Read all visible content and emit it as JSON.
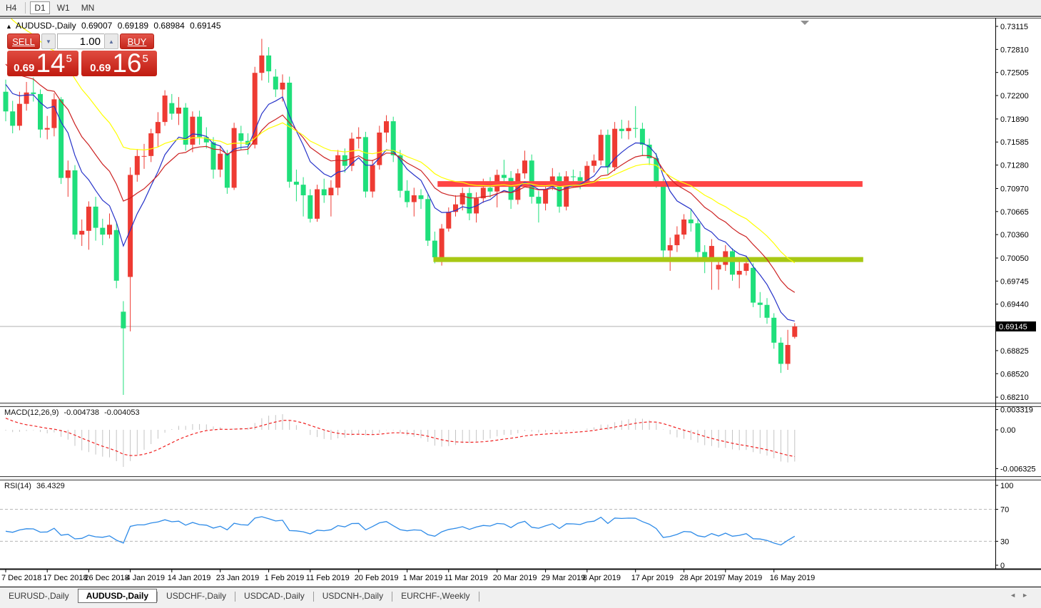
{
  "toolbar": {
    "timeframes": [
      {
        "label": "H4",
        "active": false
      },
      {
        "label": "D1",
        "active": true
      },
      {
        "label": "W1",
        "active": false
      },
      {
        "label": "MN",
        "active": false
      }
    ]
  },
  "icons": {
    "expand_triangle": "▲",
    "dropdown_down": "▼",
    "spin_up": "▲",
    "nav_left": "◄",
    "nav_right": "►"
  },
  "symbol_info": {
    "symbol": "AUDUSD-,Daily",
    "open": "0.69007",
    "high": "0.69189",
    "low": "0.68984",
    "close": "0.69145"
  },
  "trade_panel": {
    "sell_label": "SELL",
    "buy_label": "BUY",
    "volume": "1.00",
    "bid": {
      "prefix": "0.69",
      "big": "14",
      "sup": "5"
    },
    "ask": {
      "prefix": "0.69",
      "big": "16",
      "sup": "5"
    }
  },
  "current_price_tag": "0.69145",
  "macd_panel": {
    "title": "MACD(12,26,9)",
    "value_main": "-0.004738",
    "value_signal": "-0.004053",
    "axis_labels": [
      "0.003319",
      "0.00",
      "-0.006325"
    ]
  },
  "rsi_panel": {
    "title": "RSI(14)",
    "value": "36.4329",
    "axis_labels": [
      "100",
      "70",
      "30",
      "0"
    ]
  },
  "bottom_tabs": [
    {
      "label": "EURUSD-,Daily",
      "active": false
    },
    {
      "label": "AUDUSD-,Daily",
      "active": true
    },
    {
      "label": "USDCHF-,Daily",
      "active": false
    },
    {
      "label": "USDCAD-,Daily",
      "active": false
    },
    {
      "label": "USDCNH-,Daily",
      "active": false
    },
    {
      "label": "EURCHF-,Weekly",
      "active": false
    }
  ],
  "colors": {
    "bull": "#ee3b33",
    "bear": "#1fdf7b",
    "ma_fast": "#2633c9",
    "ma_mid": "#cc2222",
    "ma_slow": "#ffff00",
    "macd_hist": "#c4c4c4",
    "macd_signal": "#f02020",
    "rsi": "#2e8be8",
    "rsi_levels": "#b4b4b4",
    "resistance": "#ff4545",
    "support": "#a8c814",
    "price_line": "#b0b0b0",
    "tag_bg": "#000000",
    "tag_text": "#ffffff",
    "axis_text": "#000000",
    "border": "#000000"
  },
  "chart_data": {
    "type": "candlestick",
    "symbol": "AUDUSD",
    "timeframe": "Daily",
    "price_axis": {
      "top_label_price": 0.73115,
      "labels": [
        "0.73115",
        "0.72810",
        "0.72505",
        "0.72200",
        "0.71890",
        "0.71585",
        "0.71280",
        "0.70970",
        "0.70665",
        "0.70360",
        "0.70050",
        "0.69745",
        "0.69440",
        "0.68825",
        "0.68520",
        "0.68210"
      ]
    },
    "bid_price": 0.69145,
    "date_axis": {
      "tick_indices": [
        0,
        6,
        12,
        18,
        24,
        31,
        38,
        44,
        51,
        58,
        64,
        71,
        78,
        84,
        91,
        98,
        104,
        111
      ],
      "labels": [
        "7 Dec 2018",
        "17 Dec 2018",
        "26 Dec 2018",
        "4 Jan 2019",
        "14 Jan 2019",
        "23 Jan 2019",
        "1 Feb 2019",
        "11 Feb 2019",
        "20 Feb 2019",
        "1 Mar 2019",
        "11 Mar 2019",
        "20 Mar 2019",
        "29 Mar 2019",
        "8 Apr 2019",
        "17 Apr 2019",
        "28 Apr 2019",
        "7 May 2019",
        "16 May 2019"
      ]
    },
    "hlines": [
      {
        "name": "resistance",
        "price": 0.7103,
        "x1_index": 62.4,
        "x2_index": 123.8,
        "color_key": "resistance",
        "stroke_width": 8
      },
      {
        "name": "support",
        "price": 0.7003,
        "x1_index": 61.8,
        "x2_index": 123.9,
        "color_key": "support",
        "stroke_width": 7
      }
    ],
    "moving_averages": [
      {
        "name": "fast",
        "period": 8,
        "seed": 0.7245,
        "color_key": "ma_fast"
      },
      {
        "name": "medium",
        "period": 16,
        "seed": 0.727,
        "color_key": "ma_mid"
      },
      {
        "name": "slow",
        "period": 28,
        "seed": 0.734,
        "color_key": "ma_slow"
      }
    ],
    "macd": {
      "fast": 12,
      "slow": 26,
      "signal_period": 9,
      "seed_fast": 0.7215,
      "seed_slow": 0.7215,
      "seed_signal": 0.0024
    },
    "rsi": {
      "period": 14,
      "seed_gain": 0.002,
      "seed_loss": 0.0025,
      "prev_close": 0.7224,
      "levels": [
        70,
        30
      ]
    },
    "candles": [
      [
        "2018-12-07",
        0.7225,
        0.7241,
        0.7186,
        0.7199
      ],
      [
        "2018-12-10",
        0.7199,
        0.7213,
        0.717,
        0.718
      ],
      [
        "2018-12-11",
        0.718,
        0.7225,
        0.7174,
        0.7209
      ],
      [
        "2018-12-12",
        0.7209,
        0.7238,
        0.72,
        0.7224
      ],
      [
        "2018-12-13",
        0.7224,
        0.7244,
        0.7212,
        0.7222
      ],
      [
        "2018-12-14",
        0.7222,
        0.7228,
        0.7164,
        0.7175
      ],
      [
        "2018-12-17",
        0.7175,
        0.7193,
        0.7162,
        0.7177
      ],
      [
        "2018-12-18",
        0.7177,
        0.7223,
        0.7166,
        0.7215
      ],
      [
        "2018-12-19",
        0.7215,
        0.7218,
        0.7103,
        0.7111
      ],
      [
        "2018-12-20",
        0.7111,
        0.7134,
        0.7086,
        0.7121
      ],
      [
        "2018-12-21",
        0.7121,
        0.7128,
        0.703,
        0.7036
      ],
      [
        "2018-12-24",
        0.7036,
        0.7056,
        0.7021,
        0.7041
      ],
      [
        "2018-12-26",
        0.7041,
        0.708,
        0.7016,
        0.7073
      ],
      [
        "2018-12-27",
        0.7073,
        0.7086,
        0.7028,
        0.7045
      ],
      [
        "2018-12-28",
        0.7045,
        0.7057,
        0.7022,
        0.7036
      ],
      [
        "2018-12-31",
        0.7036,
        0.7064,
        0.7031,
        0.7049
      ],
      [
        "2019-01-02",
        0.7042,
        0.7051,
        0.6965,
        0.6975
      ],
      [
        "2019-01-03",
        0.6934,
        0.6948,
        0.6824,
        0.6912
      ],
      [
        "2019-01-04",
        0.698,
        0.7125,
        0.6908,
        0.7115
      ],
      [
        "2019-01-07",
        0.7115,
        0.7149,
        0.7106,
        0.714
      ],
      [
        "2019-01-08",
        0.714,
        0.7156,
        0.7123,
        0.714
      ],
      [
        "2019-01-09",
        0.714,
        0.7176,
        0.7132,
        0.717
      ],
      [
        "2019-01-10",
        0.717,
        0.7198,
        0.7152,
        0.7185
      ],
      [
        "2019-01-11",
        0.7185,
        0.7227,
        0.718,
        0.722
      ],
      [
        "2019-01-14",
        0.721,
        0.7222,
        0.7188,
        0.7196
      ],
      [
        "2019-01-15",
        0.7196,
        0.7218,
        0.7181,
        0.7204
      ],
      [
        "2019-01-16",
        0.7204,
        0.721,
        0.7147,
        0.7155
      ],
      [
        "2019-01-17",
        0.7155,
        0.7199,
        0.7145,
        0.7192
      ],
      [
        "2019-01-18",
        0.7192,
        0.72,
        0.7155,
        0.7165
      ],
      [
        "2019-01-21",
        0.7165,
        0.7178,
        0.715,
        0.7158
      ],
      [
        "2019-01-22",
        0.7158,
        0.7165,
        0.711,
        0.7122
      ],
      [
        "2019-01-23",
        0.7122,
        0.7154,
        0.7112,
        0.7143
      ],
      [
        "2019-01-24",
        0.7143,
        0.7148,
        0.709,
        0.7098
      ],
      [
        "2019-01-25",
        0.7098,
        0.7184,
        0.7095,
        0.7177
      ],
      [
        "2019-01-28",
        0.717,
        0.718,
        0.7148,
        0.716
      ],
      [
        "2019-01-29",
        0.716,
        0.717,
        0.7142,
        0.7155
      ],
      [
        "2019-01-30",
        0.7155,
        0.7258,
        0.715,
        0.725
      ],
      [
        "2019-01-31",
        0.725,
        0.7295,
        0.724,
        0.7273
      ],
      [
        "2019-02-01",
        0.7273,
        0.7284,
        0.7237,
        0.7252
      ],
      [
        "2019-02-04",
        0.7245,
        0.7255,
        0.7218,
        0.7228
      ],
      [
        "2019-02-05",
        0.7228,
        0.7248,
        0.7212,
        0.7237
      ],
      [
        "2019-02-06",
        0.7237,
        0.7245,
        0.7098,
        0.7106
      ],
      [
        "2019-02-07",
        0.7106,
        0.7122,
        0.708,
        0.7102
      ],
      [
        "2019-02-08",
        0.7102,
        0.7112,
        0.706,
        0.7088
      ],
      [
        "2019-02-11",
        0.7088,
        0.7096,
        0.7052,
        0.7057
      ],
      [
        "2019-02-12",
        0.7057,
        0.7102,
        0.7053,
        0.7096
      ],
      [
        "2019-02-13",
        0.7096,
        0.711,
        0.7078,
        0.7088
      ],
      [
        "2019-02-14",
        0.7088,
        0.7108,
        0.706,
        0.7098
      ],
      [
        "2019-02-15",
        0.7098,
        0.7148,
        0.7088,
        0.7141
      ],
      [
        "2019-02-18",
        0.7141,
        0.715,
        0.7118,
        0.7127
      ],
      [
        "2019-02-19",
        0.7127,
        0.7171,
        0.712,
        0.7163
      ],
      [
        "2019-02-20",
        0.7163,
        0.7178,
        0.715,
        0.7165
      ],
      [
        "2019-02-21",
        0.7165,
        0.7172,
        0.7085,
        0.7093
      ],
      [
        "2019-02-22",
        0.7093,
        0.7135,
        0.7085,
        0.7128
      ],
      [
        "2019-02-25",
        0.7128,
        0.718,
        0.7122,
        0.7171
      ],
      [
        "2019-02-26",
        0.7171,
        0.7194,
        0.7158,
        0.7186
      ],
      [
        "2019-02-27",
        0.7186,
        0.7192,
        0.7132,
        0.7141
      ],
      [
        "2019-02-28",
        0.7141,
        0.7148,
        0.7085,
        0.7094
      ],
      [
        "2019-03-01",
        0.7094,
        0.7108,
        0.7072,
        0.7079
      ],
      [
        "2019-03-04",
        0.7079,
        0.7098,
        0.706,
        0.7088
      ],
      [
        "2019-03-05",
        0.7088,
        0.7096,
        0.707,
        0.7083
      ],
      [
        "2019-03-06",
        0.7083,
        0.7089,
        0.7021,
        0.7028
      ],
      [
        "2019-03-07",
        0.7028,
        0.704,
        0.6998,
        0.7006
      ],
      [
        "2019-03-08",
        0.7006,
        0.705,
        0.6995,
        0.7044
      ],
      [
        "2019-03-11",
        0.7044,
        0.7072,
        0.704,
        0.7066
      ],
      [
        "2019-03-12",
        0.7066,
        0.7088,
        0.706,
        0.7076
      ],
      [
        "2019-03-13",
        0.7076,
        0.7098,
        0.7068,
        0.7091
      ],
      [
        "2019-03-14",
        0.7091,
        0.7098,
        0.7055,
        0.7064
      ],
      [
        "2019-03-15",
        0.7064,
        0.7092,
        0.7052,
        0.7084
      ],
      [
        "2019-03-18",
        0.7084,
        0.711,
        0.7078,
        0.7098
      ],
      [
        "2019-03-19",
        0.7098,
        0.7112,
        0.7085,
        0.7093
      ],
      [
        "2019-03-20",
        0.7093,
        0.7122,
        0.7072,
        0.7115
      ],
      [
        "2019-03-21",
        0.7115,
        0.7135,
        0.71,
        0.7111
      ],
      [
        "2019-03-22",
        0.7111,
        0.712,
        0.707,
        0.7082
      ],
      [
        "2019-03-25",
        0.7082,
        0.7123,
        0.7076,
        0.7117
      ],
      [
        "2019-03-26",
        0.7117,
        0.7147,
        0.711,
        0.7134
      ],
      [
        "2019-03-27",
        0.7134,
        0.7142,
        0.7077,
        0.7086
      ],
      [
        "2019-03-28",
        0.7086,
        0.7094,
        0.7052,
        0.7077
      ],
      [
        "2019-03-29",
        0.7077,
        0.7102,
        0.7068,
        0.7096
      ],
      [
        "2019-04-01",
        0.7102,
        0.7124,
        0.7095,
        0.7113
      ],
      [
        "2019-04-02",
        0.7113,
        0.7118,
        0.7065,
        0.7073
      ],
      [
        "2019-04-03",
        0.7073,
        0.712,
        0.7068,
        0.7113
      ],
      [
        "2019-04-04",
        0.7113,
        0.7122,
        0.7098,
        0.7112
      ],
      [
        "2019-04-05",
        0.7112,
        0.712,
        0.7096,
        0.7107
      ],
      [
        "2019-04-08",
        0.7107,
        0.7133,
        0.71,
        0.7127
      ],
      [
        "2019-04-09",
        0.7127,
        0.7142,
        0.7118,
        0.7134
      ],
      [
        "2019-04-10",
        0.7134,
        0.7175,
        0.7128,
        0.7168
      ],
      [
        "2019-04-11",
        0.7168,
        0.7175,
        0.7116,
        0.7125
      ],
      [
        "2019-04-12",
        0.7125,
        0.7185,
        0.712,
        0.7176
      ],
      [
        "2019-04-15",
        0.7176,
        0.7188,
        0.7163,
        0.7173
      ],
      [
        "2019-04-16",
        0.7173,
        0.7187,
        0.7162,
        0.7177
      ],
      [
        "2019-04-17",
        0.7177,
        0.7206,
        0.7164,
        0.7176
      ],
      [
        "2019-04-18",
        0.7176,
        0.7184,
        0.714,
        0.7155
      ],
      [
        "2019-04-22",
        0.7155,
        0.7163,
        0.7128,
        0.7137
      ],
      [
        "2019-04-23",
        0.7137,
        0.7144,
        0.7098,
        0.7105
      ],
      [
        "2019-04-24",
        0.7105,
        0.711,
        0.7005,
        0.7015
      ],
      [
        "2019-04-25",
        0.7015,
        0.7032,
        0.6988,
        0.7022
      ],
      [
        "2019-04-26",
        0.7022,
        0.7047,
        0.7013,
        0.7036
      ],
      [
        "2019-04-29",
        0.7036,
        0.7063,
        0.703,
        0.7056
      ],
      [
        "2019-04-30",
        0.7056,
        0.7069,
        0.704,
        0.7051
      ],
      [
        "2019-05-01",
        0.7051,
        0.7056,
        0.7006,
        0.7013
      ],
      [
        "2019-05-02",
        0.7013,
        0.7022,
        0.6985,
        0.7
      ],
      [
        "2019-05-03",
        0.7,
        0.703,
        0.6963,
        0.7021
      ],
      [
        "2019-05-06",
        0.699,
        0.7005,
        0.6963,
        0.6996
      ],
      [
        "2019-05-07",
        0.6996,
        0.7022,
        0.6988,
        0.7014
      ],
      [
        "2019-05-08",
        0.7014,
        0.7018,
        0.6975,
        0.6983
      ],
      [
        "2019-05-09",
        0.6983,
        0.7,
        0.6965,
        0.6988
      ],
      [
        "2019-05-10",
        0.6988,
        0.7008,
        0.6982,
        0.6998
      ],
      [
        "2019-05-13",
        0.6992,
        0.6998,
        0.694,
        0.6946
      ],
      [
        "2019-05-14",
        0.6946,
        0.696,
        0.6926,
        0.6943
      ],
      [
        "2019-05-15",
        0.6943,
        0.6952,
        0.6918,
        0.6926
      ],
      [
        "2019-05-16",
        0.6926,
        0.6932,
        0.6885,
        0.6893
      ],
      [
        "2019-05-17",
        0.6893,
        0.69,
        0.6853,
        0.6865
      ],
      [
        "2019-05-20",
        0.6865,
        0.691,
        0.6857,
        0.689
      ],
      [
        "2019-05-21",
        0.69007,
        0.69189,
        0.68984,
        0.69145
      ]
    ]
  }
}
